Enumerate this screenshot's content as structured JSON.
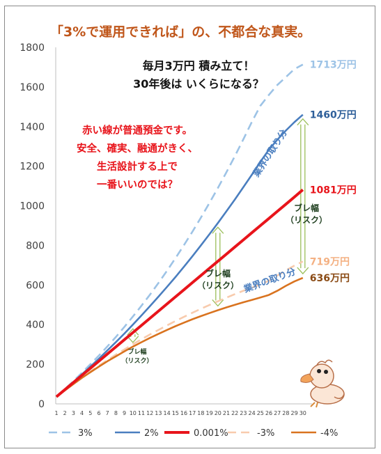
{
  "chart_data": {
    "type": "line",
    "title": "「3%で運用できれば」の、不都合な真実。",
    "subtitle_lines": [
      "毎月3万円 積み立て！",
      "30年後は いくらになる？"
    ],
    "red_note_lines": [
      "赤い線が普通預金です。",
      "安全、確実、融通がきく、",
      "生活設計する上で",
      "一番いいのでは？"
    ],
    "x": [
      1,
      2,
      3,
      4,
      5,
      6,
      7,
      8,
      9,
      10,
      11,
      12,
      13,
      14,
      15,
      16,
      17,
      18,
      19,
      20,
      21,
      22,
      23,
      24,
      25,
      26,
      27,
      28,
      29,
      30
    ],
    "x_tick_labels": [
      "1",
      "2",
      "3",
      "4",
      "5",
      "6",
      "7",
      "8",
      "9",
      "10",
      "11",
      "12",
      "13",
      "14",
      "15",
      "16",
      "17",
      "18",
      "19",
      "20",
      "21",
      "22",
      "23",
      "24",
      "25",
      "26",
      "27",
      "28",
      "29",
      "30"
    ],
    "y_ticks": [
      "0",
      "200",
      "400",
      "600",
      "800",
      "1000",
      "1200",
      "1400",
      "1600",
      "1800"
    ],
    "ylim": [
      0,
      1800
    ],
    "grid": false,
    "legend_position": "bottom",
    "series": [
      {
        "name": "3%",
        "color": "#9dc3e6",
        "dash": true,
        "end_label": "1713万円",
        "values": [
          37,
          75,
          115,
          157,
          200,
          244,
          290,
          338,
          389,
          441,
          495,
          551,
          610,
          671,
          735,
          801,
          869,
          940,
          1014,
          1090,
          1169,
          1251,
          1336,
          1424,
          1505,
          1560,
          1610,
          1650,
          1690,
          1713
        ]
      },
      {
        "name": "2%",
        "color": "#4a7ebf",
        "dash": false,
        "end_label": "1460万円",
        "values": [
          36,
          73,
          110,
          149,
          188,
          228,
          270,
          312,
          355,
          400,
          446,
          493,
          541,
          590,
          640,
          692,
          745,
          800,
          856,
          913,
          972,
          1032,
          1094,
          1157,
          1222,
          1283,
          1334,
          1380,
          1422,
          1460
        ]
      },
      {
        "name": "0.001%",
        "color": "#e8141b",
        "dash": false,
        "end_label": "1081万円",
        "values": [
          36,
          72,
          108,
          144,
          180,
          216,
          252,
          288,
          324,
          360,
          396,
          432,
          468,
          504,
          540,
          576,
          612,
          648,
          684,
          720,
          756,
          792,
          828,
          864,
          900,
          936,
          972,
          1008,
          1044,
          1081
        ]
      },
      {
        "name": "-3%",
        "color": "#f8cbad",
        "dash": true,
        "end_label": "719万円",
        "values": [
          35,
          69,
          101,
          133,
          163,
          193,
          221,
          249,
          275,
          301,
          326,
          350,
          373,
          396,
          418,
          439,
          460,
          480,
          499,
          518,
          536,
          554,
          571,
          587,
          602,
          622,
          648,
          674,
          698,
          719
        ]
      },
      {
        "name": "-4%",
        "color": "#d9731f",
        "dash": false,
        "end_label": "636万円",
        "values": [
          35,
          68,
          100,
          131,
          160,
          188,
          215,
          240,
          265,
          289,
          311,
          333,
          353,
          373,
          392,
          410,
          427,
          443,
          458,
          473,
          487,
          500,
          513,
          525,
          537,
          550,
          571,
          596,
          618,
          636
        ]
      }
    ],
    "annotations": {
      "risk_label": "ブレ幅",
      "risk_sub": "（リスク）",
      "industry_share": "業界の取り分"
    }
  }
}
